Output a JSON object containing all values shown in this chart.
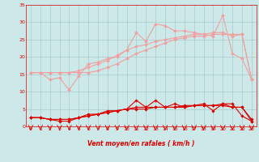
{
  "x": [
    0,
    1,
    2,
    3,
    4,
    5,
    6,
    7,
    8,
    9,
    10,
    11,
    12,
    13,
    14,
    15,
    16,
    17,
    18,
    19,
    20,
    21,
    22,
    23
  ],
  "line1": [
    15.5,
    15.5,
    13.5,
    14.0,
    10.5,
    14.5,
    18.0,
    18.5,
    19.5,
    20.0,
    22.0,
    27.0,
    24.5,
    29.5,
    29.0,
    27.5,
    27.5,
    27.0,
    26.5,
    26.0,
    32.0,
    21.0,
    19.5,
    13.5
  ],
  "line2": [
    15.5,
    15.5,
    15.5,
    15.5,
    15.5,
    16.0,
    17.0,
    18.0,
    19.0,
    20.5,
    22.0,
    23.0,
    23.5,
    24.5,
    25.0,
    25.5,
    26.0,
    26.5,
    26.5,
    27.0,
    27.0,
    26.0,
    26.5,
    13.5
  ],
  "line3": [
    15.5,
    15.5,
    15.5,
    15.5,
    15.5,
    15.5,
    15.5,
    16.0,
    17.0,
    18.0,
    19.5,
    21.0,
    22.0,
    23.0,
    24.0,
    25.0,
    25.5,
    26.0,
    26.0,
    26.5,
    26.5,
    26.5,
    26.5,
    13.5
  ],
  "line4": [
    2.5,
    2.5,
    2.0,
    1.5,
    1.5,
    2.5,
    3.5,
    3.5,
    4.5,
    4.5,
    5.0,
    7.5,
    5.5,
    7.5,
    5.5,
    6.5,
    5.5,
    6.0,
    6.5,
    4.5,
    6.5,
    6.5,
    3.0,
    1.5
  ],
  "line5": [
    2.5,
    2.5,
    2.0,
    2.0,
    2.0,
    2.5,
    3.0,
    3.5,
    4.0,
    4.5,
    5.0,
    5.0,
    5.0,
    5.5,
    5.5,
    5.5,
    6.0,
    6.0,
    6.0,
    6.0,
    6.0,
    5.5,
    5.5,
    1.5
  ],
  "line6": [
    2.5,
    2.5,
    2.0,
    2.0,
    2.0,
    2.5,
    3.0,
    3.5,
    4.0,
    4.5,
    5.0,
    5.5,
    5.5,
    5.5,
    5.5,
    5.5,
    5.5,
    6.0,
    6.0,
    6.0,
    6.5,
    5.5,
    5.5,
    2.0
  ],
  "color_light": "#f0a0a0",
  "color_dark": "#dd0000",
  "bg_color": "#cce8e8",
  "grid_color": "#aacccc",
  "xlabel": "Vent moyen/en rafales ( km/h )",
  "ylim": [
    0,
    35
  ],
  "xlim": [
    0,
    23
  ],
  "yticks": [
    0,
    5,
    10,
    15,
    20,
    25,
    30,
    35
  ],
  "xticks": [
    0,
    1,
    2,
    3,
    4,
    5,
    6,
    7,
    8,
    9,
    10,
    11,
    12,
    13,
    14,
    15,
    16,
    17,
    18,
    19,
    20,
    21,
    22,
    23
  ]
}
